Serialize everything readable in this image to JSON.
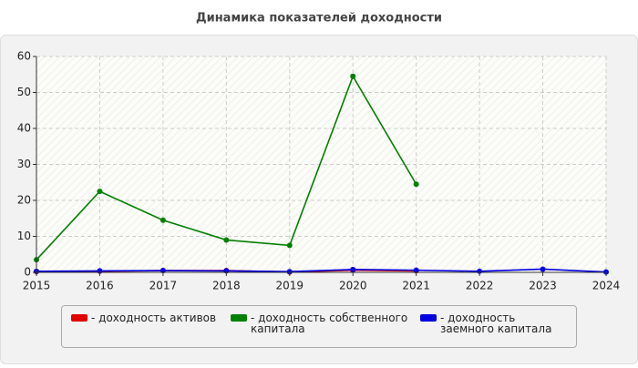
{
  "chart_data": {
    "type": "line",
    "title": "Динамика показателей доходности",
    "x": [
      2015,
      2016,
      2017,
      2018,
      2019,
      2020,
      2021,
      2022,
      2023,
      2024
    ],
    "xlim": [
      2015,
      2024
    ],
    "xticks": [
      2015,
      2016,
      2017,
      2018,
      2019,
      2020,
      2021,
      2022,
      2023,
      2024
    ],
    "ylim": [
      0,
      60
    ],
    "yticks": [
      0,
      10,
      20,
      30,
      40,
      50,
      60
    ],
    "grid": true,
    "series": [
      {
        "name": "- доходность активов",
        "color": "#e00000",
        "values": [
          0.2,
          0.3,
          0.5,
          0.5,
          0.1,
          0.6,
          0.4,
          null,
          null,
          null
        ]
      },
      {
        "name": "- доходность собственного капитала",
        "color": "#008000",
        "values": [
          3.5,
          22.5,
          14.5,
          9,
          7.5,
          54.5,
          24.5,
          null,
          null,
          null
        ]
      },
      {
        "name": "- доходность заемного капитала",
        "color": "#0000e0",
        "values": [
          0.3,
          0.4,
          0.5,
          0.4,
          0.2,
          0.8,
          0.6,
          0.3,
          0.9,
          0.1
        ]
      }
    ]
  }
}
